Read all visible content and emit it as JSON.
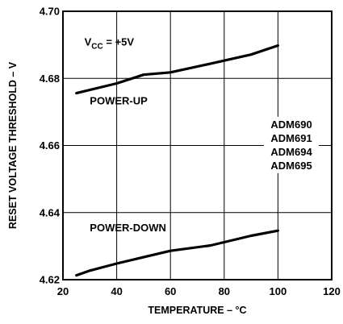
{
  "chart_data": {
    "type": "line",
    "xlabel": "TEMPERATURE – °C",
    "ylabel": "RESET VOLTAGE THRESHOLD – V",
    "xlim": [
      20,
      120
    ],
    "ylim": [
      4.62,
      4.7
    ],
    "x_ticks": [
      "20",
      "40",
      "60",
      "80",
      "100",
      "120"
    ],
    "y_ticks": [
      "4.62",
      "4.64",
      "4.66",
      "4.68",
      "4.70"
    ],
    "grid": true,
    "legend": "none",
    "series": [
      {
        "label": "POWER-UP",
        "x": [
          25,
          40,
          50,
          60,
          75,
          90,
          100
        ],
        "y": [
          4.6756,
          4.6785,
          4.6811,
          4.6818,
          4.6844,
          4.6871,
          4.6898
        ]
      },
      {
        "label": "POWER-DOWN",
        "x": [
          25,
          30,
          40,
          50,
          60,
          75,
          90,
          100
        ],
        "y": [
          4.6213,
          4.6227,
          4.6248,
          4.6267,
          4.6286,
          4.6302,
          4.6331,
          4.6346
        ]
      }
    ],
    "annotations": {
      "vcc_main": "V",
      "vcc_sub": "CC",
      "vcc_value": " = +5V",
      "parts": [
        "ADM690",
        "ADM691",
        "ADM694",
        "ADM695"
      ]
    }
  }
}
